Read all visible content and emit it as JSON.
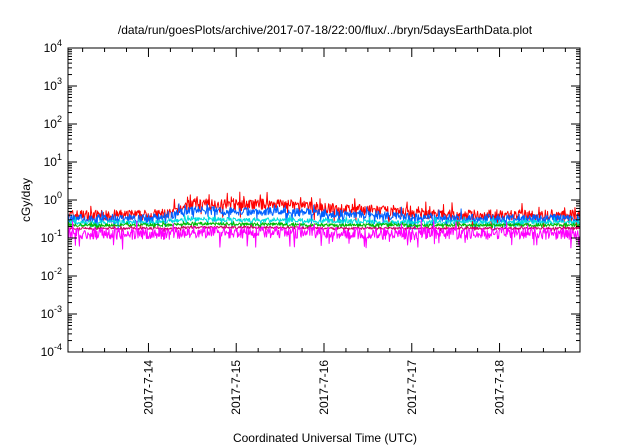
{
  "chart_data": {
    "type": "line",
    "title": "/data/run/goesPlots/archive/2017-07-18/22:00/flux/../bryn/5daysEarthData.plot",
    "xlabel": "Coordinated Universal Time (UTC)",
    "ylabel": "cGy/day",
    "yscale": "log",
    "ylim": [
      0.0001,
      10000
    ],
    "xlim": [
      "2017-07-13 02:00",
      "2017-07-18 22:00"
    ],
    "grid": false,
    "legend": "none",
    "x_ticks": [
      "2017-7-14",
      "2017-7-15",
      "2017-7-16",
      "2017-7-17",
      "2017-7-18"
    ],
    "y_ticks": [
      {
        "base": "10",
        "exp": "-4"
      },
      {
        "base": "10",
        "exp": "-3"
      },
      {
        "base": "10",
        "exp": "-2"
      },
      {
        "base": "10",
        "exp": "-1"
      },
      {
        "base": "10",
        "exp": "0"
      },
      {
        "base": "10",
        "exp": "1"
      },
      {
        "base": "10",
        "exp": "2"
      },
      {
        "base": "10",
        "exp": "3"
      },
      {
        "base": "10",
        "exp": "4"
      }
    ],
    "x": [
      "2017-07-13 02:00",
      "2017-07-13 12:00",
      "2017-07-14 00:00",
      "2017-07-14 06:00",
      "2017-07-14 12:00",
      "2017-07-15 00:00",
      "2017-07-15 12:00",
      "2017-07-16 00:00",
      "2017-07-16 12:00",
      "2017-07-17 00:00",
      "2017-07-17 12:00",
      "2017-07-18 00:00",
      "2017-07-18 12:00",
      "2017-07-18 22:00"
    ],
    "series": [
      {
        "color": "#ff0000",
        "values": [
          0.4,
          0.4,
          0.4,
          0.45,
          0.8,
          0.75,
          0.8,
          0.6,
          0.55,
          0.45,
          0.4,
          0.4,
          0.4,
          0.4
        ]
      },
      {
        "color": "#0060ff",
        "values": [
          0.33,
          0.33,
          0.33,
          0.38,
          0.55,
          0.5,
          0.5,
          0.45,
          0.42,
          0.34,
          0.33,
          0.33,
          0.33,
          0.33
        ]
      },
      {
        "color": "#00dddd",
        "values": [
          0.26,
          0.26,
          0.26,
          0.28,
          0.32,
          0.3,
          0.3,
          0.28,
          0.27,
          0.26,
          0.26,
          0.26,
          0.26,
          0.26
        ]
      },
      {
        "color": "#00bb00",
        "values": [
          0.22,
          0.22,
          0.22,
          0.22,
          0.24,
          0.23,
          0.23,
          0.22,
          0.22,
          0.22,
          0.22,
          0.22,
          0.22,
          0.22
        ]
      },
      {
        "color": "#cc0066",
        "values": [
          0.18,
          0.18,
          0.18,
          0.18,
          0.19,
          0.19,
          0.19,
          0.18,
          0.18,
          0.18,
          0.18,
          0.18,
          0.18,
          0.18
        ]
      },
      {
        "color": "#ff00ff",
        "values": [
          0.13,
          0.13,
          0.13,
          0.13,
          0.14,
          0.14,
          0.14,
          0.14,
          0.13,
          0.13,
          0.13,
          0.13,
          0.13,
          0.13
        ]
      }
    ]
  }
}
